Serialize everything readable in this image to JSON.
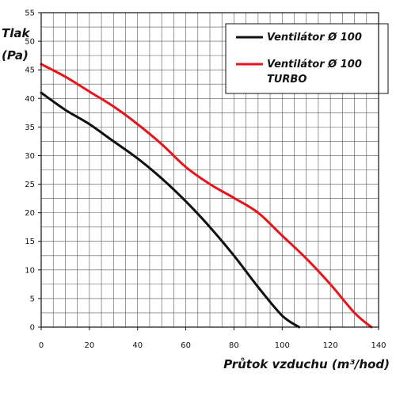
{
  "chart_data": {
    "type": "line",
    "ylabel_line1": "Tlak",
    "ylabel_line2": "(Pa)",
    "xlabel": "Průtok vzduchu (m³/hod)",
    "xlim": [
      0,
      140
    ],
    "ylim": [
      0,
      55
    ],
    "x_ticks": [
      "0",
      "20",
      "40",
      "60",
      "80",
      "100",
      "120",
      "140"
    ],
    "y_ticks": [
      "0",
      "5",
      "10",
      "15",
      "20",
      "25",
      "30",
      "35",
      "40",
      "45",
      "50",
      "55"
    ],
    "grid": true,
    "legend_position": "top-right",
    "series": [
      {
        "name": "Ventilátor Ø 100",
        "color": "#111111",
        "points": [
          [
            0,
            41
          ],
          [
            10,
            38
          ],
          [
            20,
            35.5
          ],
          [
            30,
            32.5
          ],
          [
            40,
            29.5
          ],
          [
            50,
            26
          ],
          [
            60,
            22
          ],
          [
            70,
            17.5
          ],
          [
            80,
            12.5
          ],
          [
            90,
            7
          ],
          [
            100,
            2
          ],
          [
            107,
            0
          ]
        ]
      },
      {
        "name_line1": "Ventilátor Ø 100",
        "name_line2": "TURBO",
        "color": "#e8141b",
        "points": [
          [
            0,
            46
          ],
          [
            10,
            43.8
          ],
          [
            20,
            41.2
          ],
          [
            30,
            38.6
          ],
          [
            40,
            35.5
          ],
          [
            50,
            32
          ],
          [
            60,
            28
          ],
          [
            70,
            25
          ],
          [
            80,
            22.6
          ],
          [
            90,
            20
          ],
          [
            100,
            16
          ],
          [
            110,
            12
          ],
          [
            120,
            7.5
          ],
          [
            130,
            2.5
          ],
          [
            137,
            0
          ]
        ]
      }
    ]
  }
}
